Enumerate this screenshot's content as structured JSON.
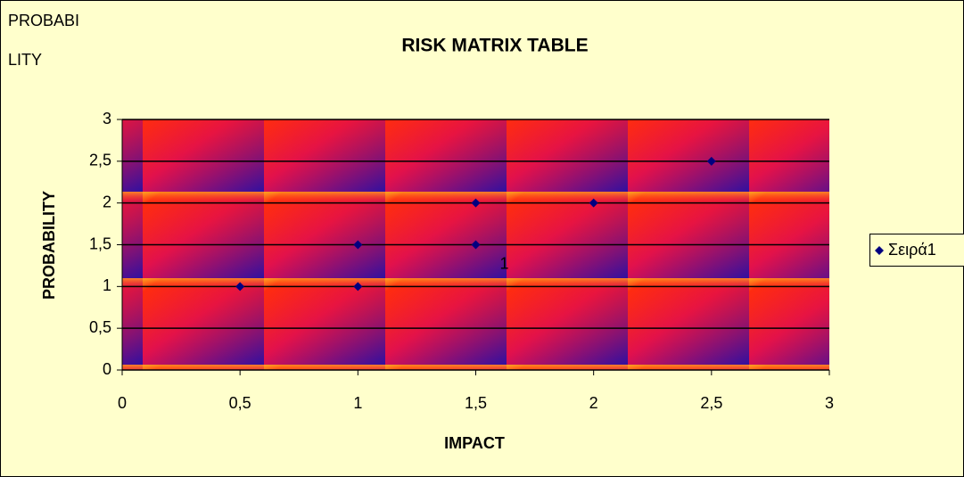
{
  "chart_data": {
    "type": "scatter",
    "title": "RISK MATRIX TABLE",
    "corner_label_lines": [
      "PROBABI",
      "LITY"
    ],
    "x_label": "IMPACT",
    "y_label": "PROBABILITY",
    "series": [
      {
        "name": "Σειρά1",
        "color": "#000080",
        "x": [
          0.5,
          1,
          1,
          1.5,
          1.5,
          2,
          2.5
        ],
        "values": [
          1,
          1,
          1.5,
          1.5,
          2,
          2,
          2.5
        ]
      }
    ],
    "annotation": "1",
    "xlim": [
      0,
      3
    ],
    "ylim": [
      0,
      3
    ],
    "xticks": [
      0,
      {
        "value": 0.5,
        "label": "0,5"
      },
      1,
      {
        "value": 1.5,
        "label": "1,5"
      },
      2,
      {
        "value": 2.5,
        "label": "2,5"
      },
      3
    ],
    "yticks": [
      0,
      {
        "value": 0.5,
        "label": "0,5"
      },
      1,
      {
        "value": 1.5,
        "label": "1,5"
      },
      2,
      {
        "value": 2.5,
        "label": "2,5"
      },
      3
    ],
    "grid": true,
    "legend": "right"
  }
}
